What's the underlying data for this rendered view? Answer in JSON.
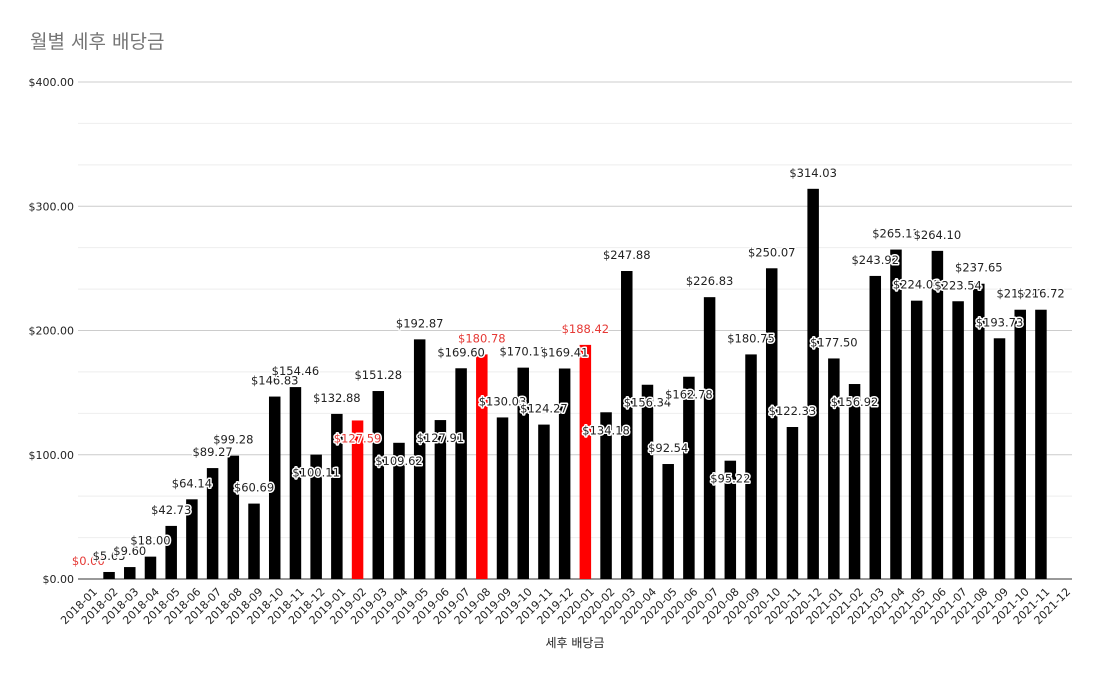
{
  "chart_data": {
    "type": "bar",
    "title": "월별 세후 배당금",
    "xlabel": "세후 배당금",
    "ylabel": "",
    "ylim": [
      0,
      400
    ],
    "yticks": [
      "$0.00",
      "$100.00",
      "$200.00",
      "$300.00",
      "$400.00"
    ],
    "grid": true,
    "legend": "none",
    "colors": {
      "default": "#000000",
      "highlight": "#ff0000",
      "highlight_label": "#e53935",
      "grid_major": "#cccccc",
      "grid_minor": "#eeeeee"
    },
    "categories": [
      "2018-01",
      "2018-02",
      "2018-03",
      "2018-04",
      "2018-05",
      "2018-06",
      "2018-07",
      "2018-08",
      "2018-09",
      "2018-10",
      "2018-11",
      "2018-12",
      "2019-01",
      "2019-02",
      "2019-03",
      "2019-04",
      "2019-05",
      "2019-06",
      "2019-07",
      "2019-08",
      "2019-09",
      "2019-10",
      "2019-11",
      "2019-12",
      "2020-01",
      "2020-02",
      "2020-03",
      "2020-04",
      "2020-05",
      "2020-06",
      "2020-07",
      "2020-08",
      "2020-09",
      "2020-10",
      "2020-11",
      "2020-12",
      "2021-01",
      "2021-02",
      "2021-03",
      "2021-04",
      "2021-05",
      "2021-06",
      "2021-07",
      "2021-08",
      "2021-09",
      "2021-10",
      "2021-11",
      "2021-12"
    ],
    "values": [
      0.0,
      5.65,
      9.6,
      18.0,
      42.73,
      64.14,
      89.27,
      99.28,
      60.69,
      146.83,
      154.46,
      100.11,
      132.88,
      127.59,
      151.28,
      109.62,
      192.87,
      127.91,
      169.6,
      180.78,
      130.03,
      170.11,
      124.27,
      169.41,
      188.42,
      134.18,
      247.88,
      156.34,
      92.54,
      162.78,
      226.83,
      95.22,
      180.75,
      250.07,
      122.33,
      314.03,
      177.5,
      156.92,
      243.92,
      265.13,
      224.01,
      264.1,
      223.54,
      237.65,
      193.73,
      216.72,
      216.72,
      0
    ],
    "labels": [
      "$0.00",
      "$5.65",
      "$9.60",
      "$18.00",
      "$42.73",
      "$64.14",
      "$89.27",
      "$99.28",
      "$60.69",
      "$146.83",
      "$154.46",
      "$100.11",
      "$132.88",
      "$127.59",
      "$151.28",
      "$109.62",
      "$192.87",
      "$127.91",
      "$169.60",
      "$180.78",
      "$130.03",
      "$170.11",
      "$124.27",
      "$169.41",
      "$188.42",
      "$134.18",
      "$247.88",
      "$156.34",
      "$92.54",
      "$162.78",
      "$226.83",
      "$95.22",
      "$180.75",
      "$250.07",
      "$122.33",
      "$314.03",
      "$177.50",
      "$156.92",
      "$243.92",
      "$265.13",
      "$224.01",
      "$264.10",
      "$223.54",
      "$237.65",
      "$193.73",
      "$216.72",
      "$216.72",
      ""
    ],
    "highlight": [
      "2018-01",
      "2019-02",
      "2019-08",
      "2020-01"
    ]
  }
}
